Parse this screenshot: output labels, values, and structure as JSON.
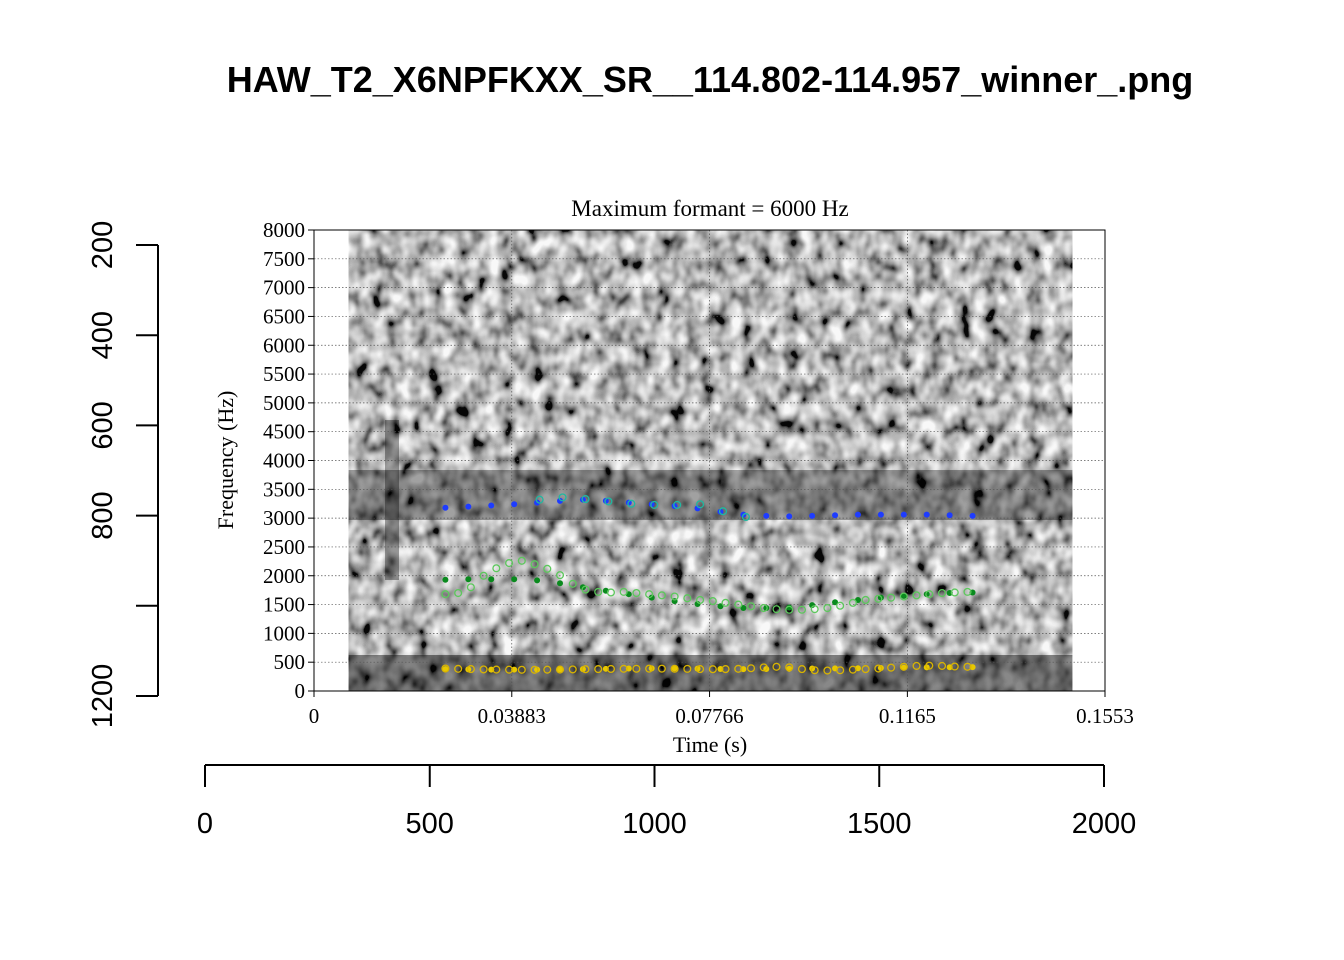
{
  "figure": {
    "title": "HAW_T2_X6NPFKXX_SR__114.802-114.957_winner_.png"
  },
  "chart_data": [
    {
      "type": "scatter",
      "title": "Maximum formant = 6000 Hz",
      "xlabel": "Time (s)",
      "ylabel": "Frequency (Hz)",
      "xlim": [
        0,
        0.1553
      ],
      "ylim": [
        0,
        8000
      ],
      "x_ticks": [
        "0",
        "0.03883",
        "0.07766",
        "0.1165",
        "0.1553"
      ],
      "y_ticks": [
        "0",
        "500",
        "1000",
        "1500",
        "2000",
        "2500",
        "3000",
        "3500",
        "4000",
        "4500",
        "5000",
        "5500",
        "6000",
        "6500",
        "7000",
        "7500",
        "8000"
      ],
      "grid": true,
      "background": "grayscale spectrogram",
      "spectrogram_time_range": [
        0.0068,
        0.1489
      ],
      "series": [
        {
          "color": "#1e3cff",
          "marker": "filled",
          "x": [
            0.0258,
            0.0303,
            0.0348,
            0.0393,
            0.0438,
            0.0483,
            0.0528,
            0.0573,
            0.0618,
            0.0663,
            0.0708,
            0.0753,
            0.0798,
            0.0843,
            0.0888,
            0.0933,
            0.0978,
            0.1023,
            0.1068,
            0.1113,
            0.1158,
            0.1203,
            0.1248,
            0.1293
          ],
          "values": [
            3180,
            3200,
            3220,
            3240,
            3270,
            3300,
            3320,
            3300,
            3270,
            3240,
            3210,
            3170,
            3110,
            3060,
            3040,
            3030,
            3040,
            3050,
            3060,
            3060,
            3060,
            3060,
            3050,
            3040
          ]
        },
        {
          "color": "#20b8a0",
          "marker": "open",
          "x": [
            0.0443,
            0.0488,
            0.0533,
            0.0578,
            0.0623,
            0.0668,
            0.0713,
            0.0758,
            0.0803,
            0.0848
          ],
          "values": [
            3320,
            3360,
            3330,
            3290,
            3250,
            3230,
            3230,
            3240,
            3120,
            3020
          ]
        },
        {
          "color": "#0a8a1e",
          "marker": "filled",
          "x": [
            0.0258,
            0.0303,
            0.0348,
            0.0393,
            0.0438,
            0.0483,
            0.0528,
            0.0573,
            0.0618,
            0.0663,
            0.0708,
            0.0753,
            0.0798,
            0.0843,
            0.0888,
            0.0933,
            0.0978,
            0.1023,
            0.1068,
            0.1113,
            0.1158,
            0.1203,
            0.1248,
            0.1293
          ],
          "values": [
            1930,
            1940,
            1940,
            1940,
            1920,
            1870,
            1800,
            1740,
            1680,
            1620,
            1560,
            1510,
            1470,
            1440,
            1440,
            1450,
            1490,
            1540,
            1580,
            1620,
            1650,
            1680,
            1700,
            1710
          ]
        },
        {
          "color": "#5cc85c",
          "marker": "open",
          "x": [
            0.0258,
            0.0283,
            0.0308,
            0.0333,
            0.0358,
            0.0383,
            0.0408,
            0.0433,
            0.0458,
            0.0483,
            0.0508,
            0.0533,
            0.0558,
            0.0583,
            0.0608,
            0.0633,
            0.0658,
            0.0683,
            0.0708,
            0.0733,
            0.0758,
            0.0783,
            0.0808,
            0.0833,
            0.0858,
            0.0883,
            0.0908,
            0.0933,
            0.0958,
            0.0983,
            0.1008,
            0.1033,
            0.1058,
            0.1083,
            0.1108,
            0.1133,
            0.1158,
            0.1183,
            0.1208,
            0.1233,
            0.1258,
            0.1283
          ],
          "values": [
            1680,
            1700,
            1800,
            2000,
            2130,
            2220,
            2260,
            2200,
            2120,
            2010,
            1860,
            1760,
            1720,
            1710,
            1720,
            1700,
            1680,
            1660,
            1640,
            1610,
            1580,
            1560,
            1530,
            1500,
            1470,
            1440,
            1420,
            1410,
            1410,
            1420,
            1440,
            1480,
            1530,
            1580,
            1600,
            1620,
            1640,
            1660,
            1680,
            1700,
            1710,
            1720
          ]
        },
        {
          "color": "#e8c800",
          "marker": "filled",
          "x": [
            0.0258,
            0.0303,
            0.0348,
            0.0393,
            0.0438,
            0.0483,
            0.0528,
            0.0573,
            0.0618,
            0.0663,
            0.0708,
            0.0753,
            0.0798,
            0.0843,
            0.0888,
            0.0933,
            0.0978,
            0.1023,
            0.1068,
            0.1113,
            0.1158,
            0.1203,
            0.1248,
            0.1293
          ],
          "values": [
            380,
            375,
            370,
            370,
            372,
            375,
            380,
            385,
            390,
            392,
            392,
            388,
            382,
            380,
            382,
            385,
            390,
            392,
            395,
            400,
            405,
            410,
            412,
            415
          ]
        },
        {
          "color": "#d9b400",
          "marker": "open",
          "x": [
            0.0258,
            0.0283,
            0.0308,
            0.0333,
            0.0358,
            0.0383,
            0.0408,
            0.0433,
            0.0458,
            0.0483,
            0.0508,
            0.0533,
            0.0558,
            0.0583,
            0.0608,
            0.0633,
            0.0658,
            0.0683,
            0.0708,
            0.0733,
            0.0758,
            0.0783,
            0.0808,
            0.0833,
            0.0858,
            0.0883,
            0.0908,
            0.0933,
            0.0958,
            0.0983,
            0.1008,
            0.1033,
            0.1058,
            0.1083,
            0.1108,
            0.1133,
            0.1158,
            0.1183,
            0.1208,
            0.1233,
            0.1258,
            0.1283
          ],
          "values": [
            390,
            385,
            380,
            375,
            372,
            370,
            368,
            368,
            370,
            372,
            375,
            378,
            380,
            382,
            385,
            386,
            388,
            388,
            386,
            384,
            380,
            378,
            380,
            385,
            395,
            410,
            420,
            410,
            380,
            360,
            355,
            360,
            370,
            380,
            390,
            405,
            420,
            435,
            440,
            435,
            425,
            420
          ]
        }
      ]
    },
    {
      "type": "axis",
      "orientation": "vertical",
      "ticks": [
        "200",
        "400",
        "600",
        "800",
        "",
        "1200"
      ],
      "tick_values": [
        200,
        400,
        600,
        800,
        1000,
        1200
      ],
      "range": [
        200,
        1200
      ],
      "reversed": true
    },
    {
      "type": "axis",
      "orientation": "horizontal",
      "ticks": [
        "0",
        "500",
        "1000",
        "1500",
        "2000"
      ],
      "tick_values": [
        0,
        500,
        1000,
        1500,
        2000
      ],
      "range": [
        0,
        2000
      ]
    }
  ]
}
